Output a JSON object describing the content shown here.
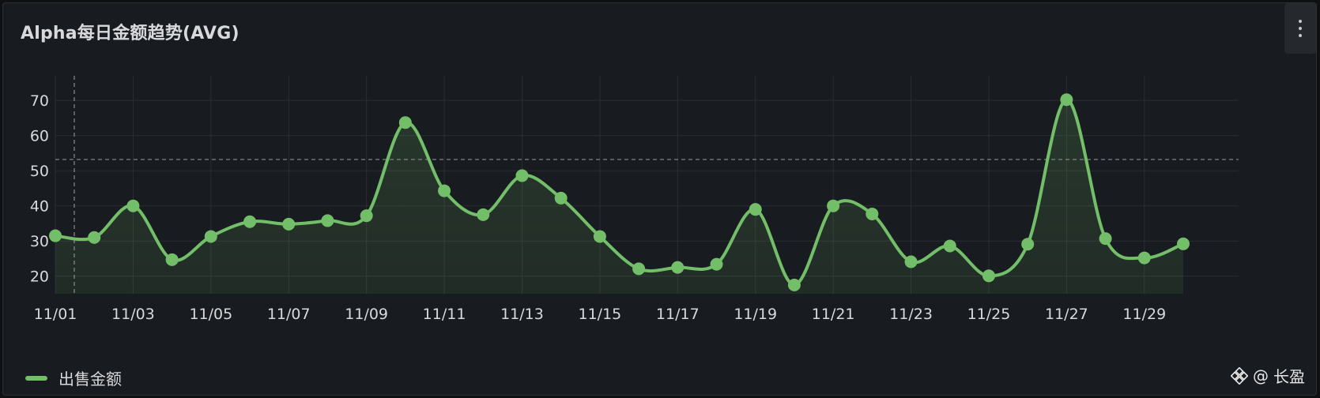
{
  "panel": {
    "title": "Alpha每日金额趋势(AVG)",
    "menu_icon": "more-vertical-icon"
  },
  "legend": {
    "label": "出售金额",
    "color": "#73bf69"
  },
  "watermark": {
    "at": "@",
    "text": "长盈",
    "icon": "binance-logo-icon"
  },
  "chart_data": {
    "type": "area",
    "title": "Alpha每日金额趋势(AVG)",
    "xlabel": "",
    "ylabel": "",
    "x": [
      "11/01",
      "11/02",
      "11/03",
      "11/04",
      "11/05",
      "11/06",
      "11/07",
      "11/08",
      "11/09",
      "11/10",
      "11/11",
      "11/12",
      "11/13",
      "11/14",
      "11/15",
      "11/16",
      "11/17",
      "11/18",
      "11/19",
      "11/20",
      "11/21",
      "11/22",
      "11/23",
      "11/24",
      "11/25",
      "11/26",
      "11/27",
      "11/28",
      "11/29",
      "11/30"
    ],
    "x_tick_labels": [
      "11/01",
      "11/03",
      "11/05",
      "11/07",
      "11/09",
      "11/11",
      "11/13",
      "11/15",
      "11/17",
      "11/19",
      "11/21",
      "11/23",
      "11/25",
      "11/27",
      "11/29"
    ],
    "series": [
      {
        "name": "出售金额",
        "color": "#73bf69",
        "values": [
          31.5,
          31,
          40,
          24.7,
          31.3,
          35.5,
          34.8,
          35.8,
          37.2,
          63.7,
          44.3,
          37.5,
          48.6,
          42.2,
          31.3,
          22.1,
          22.5,
          23.4,
          39,
          17.5,
          40,
          37.7,
          24.1,
          28.6,
          20.1,
          29.1,
          70.2,
          30.7,
          25.2,
          29.2
        ]
      }
    ],
    "ylim": [
      15,
      77
    ],
    "y_ticks": [
      20,
      30,
      40,
      50,
      60,
      70
    ],
    "threshold": 53.2,
    "crosshair_x": "11/01",
    "grid": true,
    "legend_position": "bottom-left"
  }
}
